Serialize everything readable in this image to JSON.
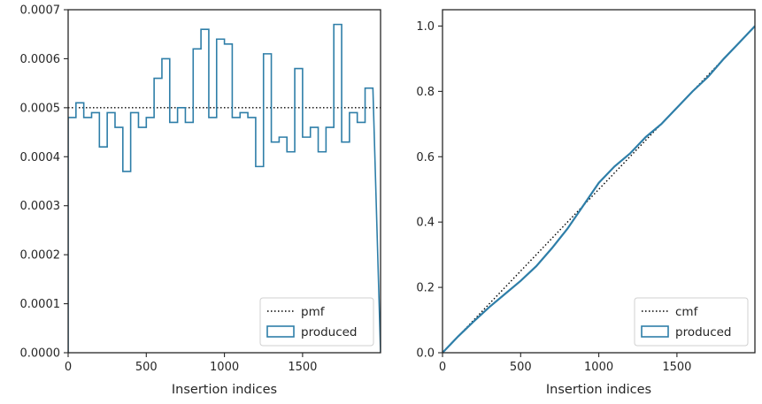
{
  "chart_data": [
    {
      "type": "line",
      "step": true,
      "xlabel": "Insertion indices",
      "ylabel": "",
      "xlim": [
        0,
        1999
      ],
      "ylim": [
        0,
        0.0007
      ],
      "xticks": [
        0,
        500,
        1000,
        1500
      ],
      "xtick_labels": [
        "0",
        "500",
        "1000",
        "1500"
      ],
      "yticks": [
        0,
        0.0001,
        0.0002,
        0.0003,
        0.0004,
        0.0005,
        0.0006,
        0.0007
      ],
      "ytick_labels": [
        "0.0000",
        "0.0001",
        "0.0002",
        "0.0003",
        "0.0004",
        "0.0005",
        "0.0006",
        "0.0007"
      ],
      "legend_position": "lower-right",
      "series": [
        {
          "name": "pmf",
          "style": "dotted",
          "color": "#000000",
          "x": [
            0,
            1999
          ],
          "y": [
            0.0005,
            0.0005
          ]
        },
        {
          "name": "produced",
          "style": "step-histogram",
          "color": "#2e7ea8",
          "bin_width": 50,
          "values": [
            0.00048,
            0.00051,
            0.00048,
            0.00049,
            0.00042,
            0.00049,
            0.00046,
            0.00037,
            0.00049,
            0.00046,
            0.00048,
            0.00056,
            0.0006,
            0.00047,
            0.0005,
            0.00047,
            0.00062,
            0.00066,
            0.00048,
            0.00064,
            0.00063,
            0.00048,
            0.00049,
            0.00048,
            0.00038,
            0.00061,
            0.00043,
            0.00044,
            0.00041,
            0.00058,
            0.00044,
            0.00046,
            0.00041,
            0.00046,
            0.00067,
            0.00043,
            0.00049,
            0.00047,
            0.00054
          ]
        }
      ]
    },
    {
      "type": "line",
      "xlabel": "Insertion indices",
      "ylabel": "",
      "xlim": [
        0,
        1999
      ],
      "ylim": [
        0,
        1.05
      ],
      "xticks": [
        0,
        500,
        1000,
        1500
      ],
      "xtick_labels": [
        "0",
        "500",
        "1000",
        "1500"
      ],
      "yticks": [
        0.0,
        0.2,
        0.4,
        0.6,
        0.8,
        1.0
      ],
      "ytick_labels": [
        "0.0",
        "0.2",
        "0.4",
        "0.6",
        "0.8",
        "1.0"
      ],
      "legend_position": "lower-right",
      "series": [
        {
          "name": "cmf",
          "style": "dotted",
          "color": "#000000",
          "x": [
            0,
            1999
          ],
          "y": [
            0,
            1.0
          ]
        },
        {
          "name": "produced",
          "style": "solid",
          "color": "#2e7ea8",
          "x": [
            0,
            100,
            200,
            300,
            400,
            500,
            600,
            700,
            800,
            900,
            1000,
            1100,
            1200,
            1300,
            1400,
            1500,
            1600,
            1700,
            1800,
            1900,
            1999
          ],
          "y": [
            0.0,
            0.05,
            0.096,
            0.14,
            0.18,
            0.22,
            0.265,
            0.32,
            0.38,
            0.45,
            0.52,
            0.57,
            0.61,
            0.66,
            0.7,
            0.75,
            0.8,
            0.845,
            0.9,
            0.95,
            1.0
          ]
        }
      ]
    }
  ]
}
